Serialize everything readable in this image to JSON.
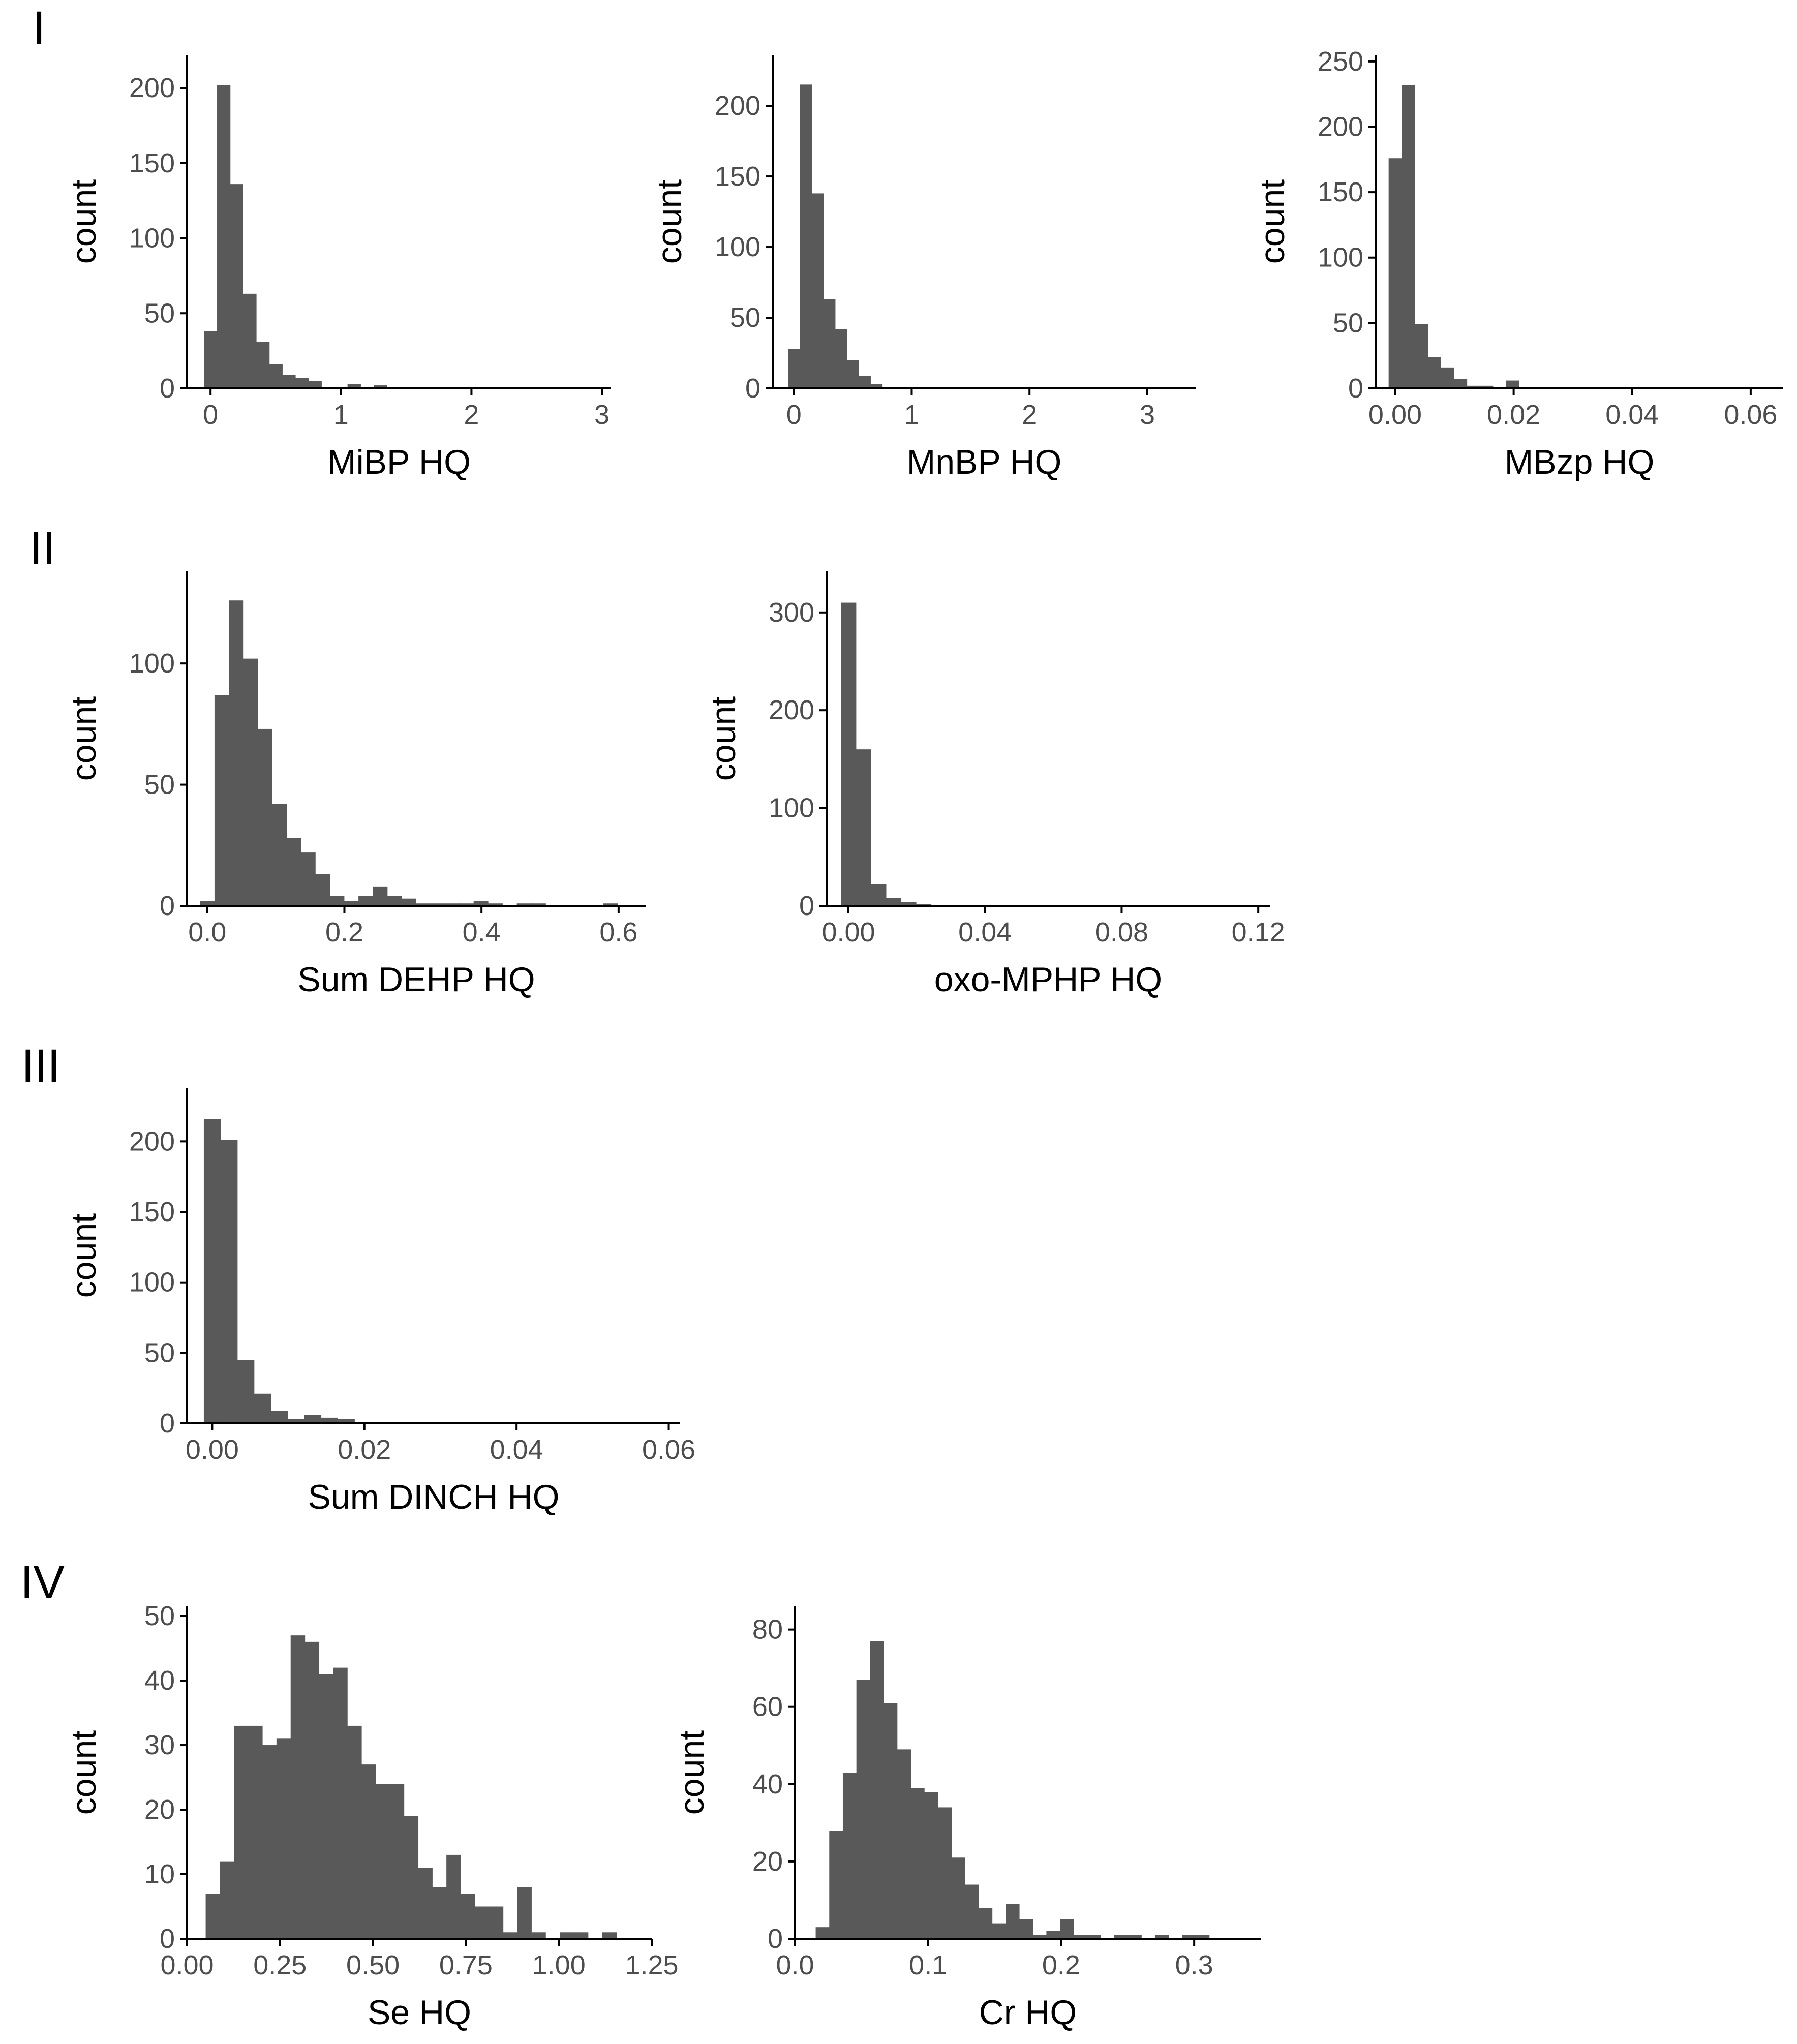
{
  "colors": {
    "bar": "#595959",
    "axis": "#000000",
    "tick_label": "#4d4d4d",
    "title": "#000000"
  },
  "row_labels": [
    "I",
    "II",
    "III",
    "IV"
  ],
  "chart_data": [
    {
      "id": "mibp",
      "row": "I",
      "type": "bar",
      "xlabel": "MiBP HQ",
      "ylabel": "count",
      "xlim": [
        -0.18,
        3.07
      ],
      "ylim": [
        0,
        222
      ],
      "xticks": [
        0,
        1,
        2,
        3
      ],
      "xtick_labels": [
        "0",
        "1",
        "2",
        "3"
      ],
      "yticks": [
        0,
        50,
        100,
        150,
        200
      ],
      "ytick_labels": [
        "0",
        "50",
        "100",
        "150",
        "200"
      ],
      "bin_start": -0.05,
      "bin_width": 0.1,
      "counts": [
        38,
        202,
        136,
        63,
        31,
        16,
        9,
        7,
        5,
        1,
        1,
        3,
        1,
        2,
        0,
        0,
        0,
        0,
        0,
        0,
        0,
        0,
        0,
        0,
        0,
        0,
        0,
        0,
        0,
        0,
        0,
        0
      ]
    },
    {
      "id": "mnbp",
      "row": "I",
      "type": "bar",
      "xlabel": "MnBP HQ",
      "ylabel": "count",
      "xlim": [
        -0.18,
        3.41
      ],
      "ylim": [
        0,
        236
      ],
      "xticks": [
        0,
        1,
        2,
        3
      ],
      "xtick_labels": [
        "0",
        "1",
        "2",
        "3"
      ],
      "yticks": [
        0,
        50,
        100,
        150,
        200
      ],
      "ytick_labels": [
        "0",
        "50",
        "100",
        "150",
        "200"
      ],
      "bin_start": -0.05,
      "bin_width": 0.1,
      "counts": [
        28,
        215,
        138,
        63,
        42,
        20,
        9,
        3,
        1,
        0,
        0,
        0,
        0,
        0,
        0,
        0,
        0,
        0,
        0,
        0,
        0,
        0,
        0,
        0,
        0,
        0,
        0,
        0,
        0,
        0,
        0,
        0,
        0,
        0,
        0
      ]
    },
    {
      "id": "mbzp",
      "row": "I",
      "type": "bar",
      "xlabel": "MBzp HQ",
      "ylabel": "count",
      "xlim": [
        -0.0033,
        0.0655
      ],
      "ylim": [
        0,
        255
      ],
      "xticks": [
        0,
        0.02,
        0.04,
        0.06
      ],
      "xtick_labels": [
        "0.00",
        "0.02",
        "0.04",
        "0.06"
      ],
      "yticks": [
        0,
        50,
        100,
        150,
        200,
        250
      ],
      "ytick_labels": [
        "0",
        "50",
        "100",
        "150",
        "200",
        "250"
      ],
      "bin_start": -0.0011,
      "bin_width": 0.0022,
      "counts": [
        176,
        232,
        49,
        24,
        16,
        7,
        2,
        2,
        1,
        6,
        1,
        0,
        0,
        0,
        0,
        0,
        0,
        1,
        0,
        0,
        0,
        0,
        0,
        0,
        0,
        0,
        0,
        0,
        0,
        0
      ]
    },
    {
      "id": "dehp",
      "row": "II",
      "type": "bar",
      "xlabel": "Sum DEHP HQ",
      "ylabel": "count",
      "xlim": [
        -0.0295,
        0.6394
      ],
      "ylim": [
        0,
        138
      ],
      "xticks": [
        0,
        0.2,
        0.4,
        0.6
      ],
      "xtick_labels": [
        "0.0",
        "0.2",
        "0.4",
        "0.6"
      ],
      "yticks": [
        0,
        50,
        100
      ],
      "ytick_labels": [
        "0",
        "50",
        "100"
      ],
      "bin_start": -0.0105,
      "bin_width": 0.021,
      "counts": [
        2,
        87,
        126,
        102,
        73,
        42,
        28,
        22,
        13,
        4,
        2,
        4,
        8,
        4,
        3,
        1,
        1,
        1,
        1,
        2,
        1,
        0,
        1,
        1,
        0,
        0,
        0,
        0,
        1,
        0
      ]
    },
    {
      "id": "oxompHP",
      "row": "II",
      "type": "bar",
      "xlabel": "oxo-MPHP HQ",
      "ylabel": "count",
      "xlim": [
        -0.0064,
        0.1234
      ],
      "ylim": [
        0,
        342
      ],
      "xticks": [
        0,
        0.04,
        0.08,
        0.12
      ],
      "xtick_labels": [
        "0.00",
        "0.04",
        "0.08",
        "0.12"
      ],
      "yticks": [
        0,
        100,
        200,
        300
      ],
      "ytick_labels": [
        "0",
        "100",
        "200",
        "300"
      ],
      "bin_start": -0.0022,
      "bin_width": 0.0044,
      "counts": [
        310,
        160,
        22,
        8,
        4,
        2,
        1,
        0,
        0,
        0,
        0,
        0,
        0,
        1,
        0,
        0,
        0,
        0,
        0,
        0,
        0,
        0,
        0,
        0,
        0,
        0,
        0,
        0
      ]
    },
    {
      "id": "dinch",
      "row": "III",
      "type": "bar",
      "xlabel": "Sum DINCH HQ",
      "ylabel": "count",
      "xlim": [
        -0.0033,
        0.0615
      ],
      "ylim": [
        0,
        238
      ],
      "xticks": [
        0,
        0.02,
        0.04,
        0.06
      ],
      "xtick_labels": [
        "0.00",
        "0.02",
        "0.04",
        "0.06"
      ],
      "yticks": [
        0,
        50,
        100,
        150,
        200
      ],
      "ytick_labels": [
        "0",
        "50",
        "100",
        "150",
        "200"
      ],
      "bin_start": -0.0011,
      "bin_width": 0.0022,
      "counts": [
        216,
        201,
        45,
        21,
        9,
        3,
        6,
        4,
        3,
        0,
        0,
        0,
        0,
        0,
        0,
        0,
        0,
        0,
        0,
        0,
        0,
        0,
        0,
        0,
        0,
        0,
        0,
        0
      ]
    },
    {
      "id": "se",
      "row": "IV",
      "type": "bar",
      "xlabel": "Se HQ",
      "ylabel": "count",
      "xlim": [
        0,
        1.25
      ],
      "ylim": [
        0,
        51.5
      ],
      "xticks": [
        0,
        0.25,
        0.5,
        0.75,
        1.0,
        1.25
      ],
      "xtick_labels": [
        "0.00",
        "0.25",
        "0.50",
        "0.75",
        "1.00",
        "1.25"
      ],
      "yticks": [
        0,
        10,
        20,
        30,
        40,
        50
      ],
      "ytick_labels": [
        "0",
        "10",
        "20",
        "30",
        "40",
        "50"
      ],
      "bin_start": 0.05,
      "bin_width": 0.0381,
      "counts": [
        7,
        12,
        33,
        33,
        30,
        31,
        47,
        46,
        41,
        42,
        33,
        27,
        24,
        24,
        19,
        11,
        8,
        13,
        7,
        5,
        5,
        1,
        8,
        1,
        0,
        1,
        1,
        0,
        1,
        0,
        0
      ]
    },
    {
      "id": "cr",
      "row": "IV",
      "type": "bar",
      "xlabel": "Cr HQ",
      "ylabel": "count",
      "xlim": [
        0,
        0.35
      ],
      "ylim": [
        0,
        86
      ],
      "xticks": [
        0,
        0.1,
        0.2,
        0.3
      ],
      "xtick_labels": [
        "0.0",
        "0.1",
        "0.2",
        "0.3"
      ],
      "yticks": [
        0,
        20,
        40,
        60,
        80
      ],
      "ytick_labels": [
        "0",
        "20",
        "40",
        "60",
        "80"
      ],
      "bin_start": 0.0155,
      "bin_width": 0.0102,
      "counts": [
        3,
        28,
        43,
        67,
        77,
        61,
        49,
        39,
        38,
        34,
        21,
        14,
        8,
        4,
        9,
        5,
        1,
        2,
        5,
        1,
        1,
        0,
        1,
        1,
        0,
        1,
        0,
        1,
        1,
        0,
        0,
        0
      ]
    }
  ]
}
